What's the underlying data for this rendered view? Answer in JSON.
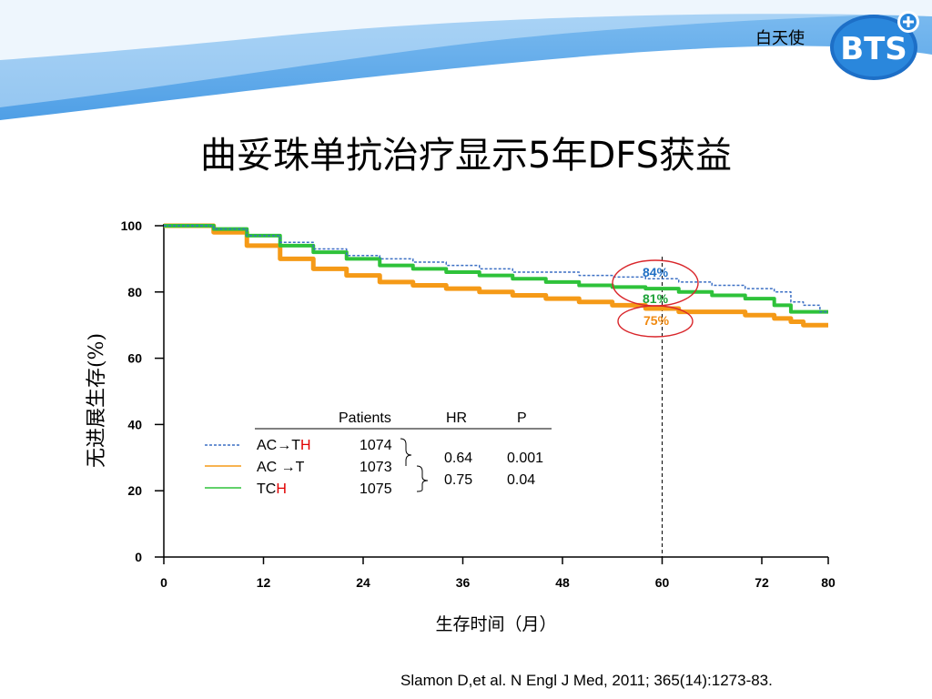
{
  "header": {
    "brand_text": "白天使",
    "logo_text": "BTS"
  },
  "title": "曲妥珠单抗治疗显示5年DFS获益",
  "citation": "Slamon D,et al. N Engl J Med, 2011; 365(14):1273-83.",
  "colors": {
    "header_blue": "#5aa6e8",
    "act_h": "#3b6fc4",
    "ac_t": "#f59a17",
    "tch": "#2ec23a",
    "circle": "#d9262b",
    "red_text": "#e00000"
  },
  "legend": {
    "headers": {
      "patients": "Patients",
      "hr": "HR",
      "p": "P"
    },
    "rows": [
      {
        "label_main": "AC→T",
        "label_red": "H",
        "patients": "1074"
      },
      {
        "label_main": "AC →T",
        "label_red": "",
        "patients": "1073"
      },
      {
        "label_main": "TC",
        "label_red": "H",
        "patients": "1075"
      }
    ],
    "hr_values": [
      "0.64",
      "0.75"
    ],
    "p_values": [
      "0.001",
      "0.04"
    ]
  },
  "annotations": {
    "act_h": "84%",
    "tch": "81%",
    "ac_t": "75%"
  },
  "chart_data": {
    "type": "line",
    "title": "曲妥珠单抗治疗显示5年DFS获益",
    "xlabel": "生存时间（月）",
    "ylabel": "无进展生存(%)",
    "xlim": [
      0,
      80
    ],
    "ylim": [
      0,
      100
    ],
    "x_ticks": [
      0,
      12,
      24,
      36,
      48,
      60,
      72,
      80
    ],
    "y_ticks": [
      0,
      20,
      40,
      60,
      80,
      100
    ],
    "reference_line_x": 60,
    "grid": false,
    "series": [
      {
        "name": "AC→TH",
        "style": "dashed",
        "x": [
          0,
          4,
          8,
          12,
          16,
          20,
          24,
          28,
          32,
          36,
          40,
          44,
          48,
          52,
          56,
          60,
          64,
          68,
          72,
          75,
          76,
          78,
          80
        ],
        "y": [
          100,
          100,
          99,
          97,
          95,
          93,
          91,
          90,
          89,
          88,
          87,
          86,
          86,
          85,
          84.5,
          84,
          83,
          82,
          81,
          80,
          77,
          76,
          74
        ]
      },
      {
        "name": "AC →T",
        "style": "solid",
        "x": [
          0,
          4,
          8,
          12,
          16,
          20,
          24,
          28,
          32,
          36,
          40,
          44,
          48,
          52,
          56,
          60,
          64,
          68,
          72,
          75,
          76,
          78,
          80
        ],
        "y": [
          100,
          100,
          98,
          94,
          90,
          87,
          85,
          83,
          82,
          81,
          80,
          79,
          78,
          77,
          76,
          75,
          74,
          74,
          73,
          72,
          71,
          70,
          70
        ]
      },
      {
        "name": "TCH",
        "style": "solid",
        "x": [
          0,
          4,
          8,
          12,
          16,
          20,
          24,
          28,
          32,
          36,
          40,
          44,
          48,
          52,
          56,
          60,
          64,
          68,
          72,
          75,
          76,
          78,
          80
        ],
        "y": [
          100,
          100,
          99,
          97,
          94,
          92,
          90,
          88,
          87,
          86,
          85,
          84,
          83,
          82,
          81.5,
          81,
          80,
          79,
          78,
          76,
          74,
          74,
          74
        ]
      }
    ]
  }
}
